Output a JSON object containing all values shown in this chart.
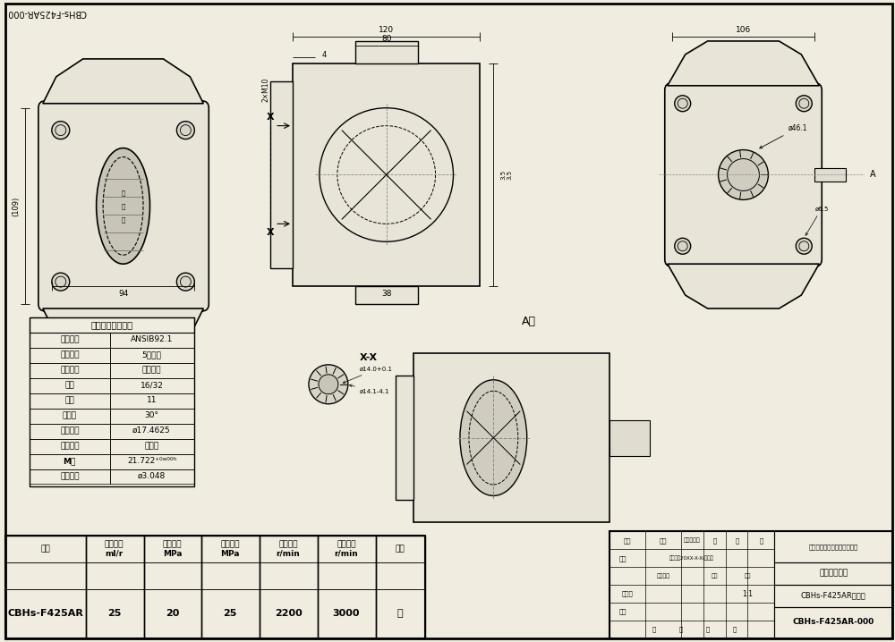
{
  "title": "CBHs-F425AR-000",
  "bg_color": "#f0ede0",
  "drawing_bg": "#f0ede0",
  "line_color": "#000000",
  "title_stamp": "CBHs-F425AR-000",
  "spline_table": {
    "title": "渐开线花键参数表",
    "rows": [
      [
        "花键规格",
        "ANSIB92.1"
      ],
      [
        "精度等级",
        "5级精度"
      ],
      [
        "配合类型",
        "齿侧配合"
      ],
      [
        "径节",
        "16/32"
      ],
      [
        "齿数",
        "11"
      ],
      [
        "压力角",
        "30°"
      ],
      [
        "节圆直径",
        "ø17.4625"
      ],
      [
        "齿根形状",
        "平齿根"
      ],
      [
        "M值",
        "21.722⁺⁰ʷ⁰⁰ʰ"
      ],
      [
        "测量直径",
        "ø3.048"
      ]
    ]
  },
  "spec_table": {
    "headers": [
      "型号",
      "额定排量\nml/r",
      "额定压力\nMPa",
      "最高压力\nMPa",
      "额定转速\nr/min",
      "最高转速\nr/min",
      "旋向"
    ],
    "row": [
      "CBHs-F425AR",
      "25",
      "20",
      "25",
      "2200",
      "3000",
      "右"
    ]
  },
  "title_block": {
    "drawing_name": "外连接尺寸图",
    "company": "洛阳精华电液压技术有限公司",
    "product": "CBHs-F425AR齿轮泵",
    "doc_num": "CBHs-F425AR-000",
    "scale": "1:1"
  },
  "watermark_text": "CBHs-F425AR-000"
}
